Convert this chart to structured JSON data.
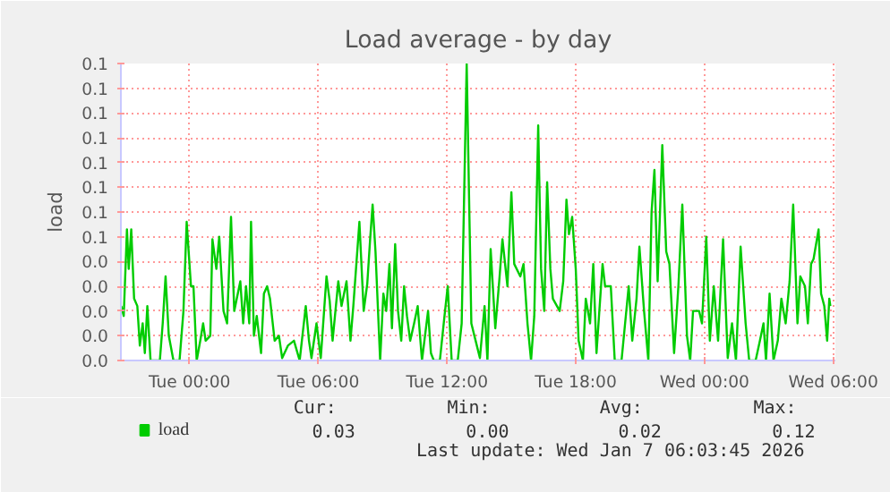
{
  "chart_data": {
    "type": "line",
    "title": "Load average - by day",
    "ylabel": "load",
    "x": [
      "2026-01-05T20:49",
      "2026-01-05T20:56",
      "2026-01-05T21:05",
      "2026-01-05T21:10",
      "2026-01-05T21:17",
      "2026-01-05T21:25",
      "2026-01-05T21:34",
      "2026-01-05T21:41",
      "2026-01-05T21:49",
      "2026-01-05T21:55",
      "2026-01-05T22:02",
      "2026-01-05T22:11",
      "2026-01-05T22:37",
      "2026-01-05T22:45",
      "2026-01-05T22:53",
      "2026-01-05T23:02",
      "2026-01-05T23:15",
      "2026-01-05T23:32",
      "2026-01-05T23:43",
      "2026-01-05T23:52",
      "2026-01-06T00:04",
      "2026-01-06T00:11",
      "2026-01-06T00:20",
      "2026-01-06T00:30",
      "2026-01-06T00:38",
      "2026-01-06T00:45",
      "2026-01-06T00:58",
      "2026-01-06T01:04",
      "2026-01-06T01:15",
      "2026-01-06T01:23",
      "2026-01-06T01:35",
      "2026-01-06T01:45",
      "2026-01-06T01:56",
      "2026-01-06T02:05",
      "2026-01-06T02:22",
      "2026-01-06T02:30",
      "2026-01-06T02:38",
      "2026-01-06T02:47",
      "2026-01-06T02:52",
      "2026-01-06T03:00",
      "2026-01-06T03:08",
      "2026-01-06T03:20",
      "2026-01-06T03:28",
      "2026-01-06T03:37",
      "2026-01-06T03:45",
      "2026-01-06T03:58",
      "2026-01-06T04:10",
      "2026-01-06T04:19",
      "2026-01-06T04:35",
      "2026-01-06T04:52",
      "2026-01-06T05:08",
      "2026-01-06T05:25",
      "2026-01-06T05:34",
      "2026-01-06T05:41",
      "2026-01-06T05:55",
      "2026-01-06T06:07",
      "2026-01-06T06:23",
      "2026-01-06T06:32",
      "2026-01-06T06:40",
      "2026-01-06T06:56",
      "2026-01-06T07:05",
      "2026-01-06T07:19",
      "2026-01-06T07:30",
      "2026-01-06T07:38",
      "2026-01-06T07:55",
      "2026-01-06T08:07",
      "2026-01-06T08:17",
      "2026-01-06T08:25",
      "2026-01-06T08:32",
      "2026-01-06T08:40",
      "2026-01-06T08:53",
      "2026-01-06T09:02",
      "2026-01-06T09:10",
      "2026-01-06T09:19",
      "2026-01-06T09:26",
      "2026-01-06T09:35",
      "2026-01-06T09:43",
      "2026-01-06T09:52",
      "2026-01-06T10:00",
      "2026-01-06T10:08",
      "2026-01-06T10:17",
      "2026-01-06T10:28",
      "2026-01-06T10:38",
      "2026-01-06T10:50",
      "2026-01-06T11:07",
      "2026-01-06T11:15",
      "2026-01-06T11:23",
      "2026-01-06T11:40",
      "2026-01-06T11:53",
      "2026-01-06T12:02",
      "2026-01-06T12:13",
      "2026-01-06T12:30",
      "2026-01-06T12:41",
      "2026-01-06T12:55",
      "2026-01-06T13:08",
      "2026-01-06T13:20",
      "2026-01-06T13:32",
      "2026-01-06T13:45",
      "2026-01-06T13:53",
      "2026-01-06T14:02",
      "2026-01-06T14:15",
      "2026-01-06T14:26",
      "2026-01-06T14:35",
      "2026-01-06T14:49",
      "2026-01-06T15:00",
      "2026-01-06T15:08",
      "2026-01-06T15:25",
      "2026-01-06T15:34",
      "2026-01-06T15:45",
      "2026-01-06T15:55",
      "2026-01-06T16:04",
      "2026-01-06T16:15",
      "2026-01-06T16:23",
      "2026-01-06T16:32",
      "2026-01-06T16:40",
      "2026-01-06T16:49",
      "2026-01-06T16:56",
      "2026-01-06T17:15",
      "2026-01-06T17:25",
      "2026-01-06T17:34",
      "2026-01-06T17:41",
      "2026-01-06T17:50",
      "2026-01-06T18:00",
      "2026-01-06T18:08",
      "2026-01-06T18:20",
      "2026-01-06T18:28",
      "2026-01-06T18:40",
      "2026-01-06T18:49",
      "2026-01-06T18:58",
      "2026-01-06T19:05",
      "2026-01-06T19:15",
      "2026-01-06T19:22",
      "2026-01-06T19:38",
      "2026-01-06T19:49",
      "2026-01-06T20:08",
      "2026-01-06T20:28",
      "2026-01-06T20:38",
      "2026-01-06T20:50",
      "2026-01-06T20:58",
      "2026-01-06T21:11",
      "2026-01-06T21:23",
      "2026-01-06T21:32",
      "2026-01-06T21:40",
      "2026-01-06T21:49",
      "2026-01-06T22:02",
      "2026-01-06T22:13",
      "2026-01-06T22:22",
      "2026-01-06T22:35",
      "2026-01-06T22:47",
      "2026-01-06T22:58",
      "2026-01-06T23:11",
      "2026-01-06T23:20",
      "2026-01-06T23:28",
      "2026-01-06T23:45",
      "2026-01-06T23:53",
      "2026-01-07T00:05",
      "2026-01-07T00:15",
      "2026-01-07T00:26",
      "2026-01-07T00:38",
      "2026-01-07T00:52",
      "2026-01-07T01:05",
      "2026-01-07T01:17",
      "2026-01-07T01:28",
      "2026-01-07T01:41",
      "2026-01-07T01:55",
      "2026-01-07T02:05",
      "2026-01-07T02:23",
      "2026-01-07T02:35",
      "2026-01-07T02:45",
      "2026-01-07T02:52",
      "2026-01-07T03:02",
      "2026-01-07T03:13",
      "2026-01-07T03:25",
      "2026-01-07T03:35",
      "2026-01-07T03:47",
      "2026-01-07T03:58",
      "2026-01-07T04:08",
      "2026-01-07T04:20",
      "2026-01-07T04:28",
      "2026-01-07T04:41",
      "2026-01-07T04:49",
      "2026-01-07T04:58",
      "2026-01-07T05:05",
      "2026-01-07T05:19",
      "2026-01-07T05:26",
      "2026-01-07T05:35",
      "2026-01-07T05:43",
      "2026-01-07T05:49",
      "2026-01-07T05:52"
    ],
    "series": [
      {
        "name": "load",
        "color": "#00cc00",
        "values": [
          0.022,
          0.018,
          0.053,
          0.037,
          0.053,
          0.025,
          0.022,
          0.006,
          0.015,
          0.003,
          0.022,
          0.0,
          0.0,
          0.015,
          0.034,
          0.01,
          0.0,
          0.0,
          0.02,
          0.056,
          0.03,
          0.03,
          0.0,
          0.008,
          0.015,
          0.008,
          0.01,
          0.049,
          0.037,
          0.05,
          0.02,
          0.015,
          0.058,
          0.02,
          0.032,
          0.015,
          0.03,
          0.015,
          0.056,
          0.01,
          0.018,
          0.003,
          0.027,
          0.03,
          0.025,
          0.008,
          0.01,
          0.001,
          0.006,
          0.008,
          0.0,
          0.022,
          0.008,
          0.001,
          0.015,
          0.001,
          0.034,
          0.024,
          0.008,
          0.032,
          0.022,
          0.032,
          0.008,
          0.022,
          0.056,
          0.02,
          0.031,
          0.049,
          0.063,
          0.044,
          0.0,
          0.027,
          0.02,
          0.039,
          0.013,
          0.047,
          0.02,
          0.008,
          0.03,
          0.018,
          0.008,
          0.015,
          0.022,
          0.0,
          0.02,
          0.003,
          0.0,
          0.0,
          0.018,
          0.03,
          0.0,
          0.0,
          0.015,
          0.12,
          0.015,
          0.008,
          0.001,
          0.022,
          0.0,
          0.045,
          0.013,
          0.032,
          0.049,
          0.03,
          0.068,
          0.039,
          0.034,
          0.039,
          0.015,
          0.0,
          0.018,
          0.095,
          0.037,
          0.02,
          0.072,
          0.037,
          0.025,
          0.02,
          0.032,
          0.065,
          0.051,
          0.058,
          0.037,
          0.008,
          0.0,
          0.025,
          0.015,
          0.039,
          0.003,
          0.018,
          0.039,
          0.03,
          0.03,
          0.0,
          0.0,
          0.03,
          0.008,
          0.025,
          0.046,
          0.02,
          0.0,
          0.06,
          0.077,
          0.032,
          0.087,
          0.044,
          0.039,
          0.003,
          0.03,
          0.063,
          0.01,
          0.0,
          0.02,
          0.02,
          0.015,
          0.05,
          0.008,
          0.03,
          0.008,
          0.049,
          0.001,
          0.015,
          0.0,
          0.046,
          0.015,
          0.0,
          0.0,
          0.008,
          0.015,
          0.0,
          0.027,
          0.0,
          0.008,
          0.025,
          0.015,
          0.032,
          0.063,
          0.015,
          0.034,
          0.03,
          0.015,
          0.039,
          0.041,
          0.053,
          0.027,
          0.022,
          0.008,
          0.025,
          0.022
        ]
      }
    ],
    "xlim": [
      "2026-01-05T20:48",
      "2026-01-07T06:06"
    ],
    "xticks": [
      {
        "value": "2026-01-06T00:00",
        "label": "Tue 00:00"
      },
      {
        "value": "2026-01-06T06:00",
        "label": "Tue 06:00"
      },
      {
        "value": "2026-01-06T12:00",
        "label": "Tue 12:00"
      },
      {
        "value": "2026-01-06T18:00",
        "label": "Tue 18:00"
      },
      {
        "value": "2026-01-07T00:00",
        "label": "Wed 00:00"
      },
      {
        "value": "2026-01-07T06:00",
        "label": "Wed 06:00"
      }
    ],
    "ylim": [
      0,
      0.12
    ],
    "yticks": [
      {
        "value": 0,
        "label": "0.0"
      },
      {
        "value": 0.01,
        "label": "0.0"
      },
      {
        "value": 0.02,
        "label": "0.0"
      },
      {
        "value": 0.03,
        "label": "0.0"
      },
      {
        "value": 0.04,
        "label": "0.0"
      },
      {
        "value": 0.05,
        "label": "0.1"
      },
      {
        "value": 0.06,
        "label": "0.1"
      },
      {
        "value": 0.07,
        "label": "0.1"
      },
      {
        "value": 0.08,
        "label": "0.1"
      },
      {
        "value": 0.09,
        "label": "0.1"
      },
      {
        "value": 0.1,
        "label": "0.1"
      },
      {
        "value": 0.11,
        "label": "0.1"
      },
      {
        "value": 0.12,
        "label": "0.1"
      }
    ],
    "grid": true,
    "legend": "bottom left",
    "marker": "none",
    "line_style": "solid",
    "annotations": [
      "Cur:",
      "Min:",
      "Avg:",
      "Max:",
      "0.03",
      "0.00",
      "0.02",
      "0.12",
      "Last update: Wed Jan  7 06:03:45 2026"
    ]
  }
}
